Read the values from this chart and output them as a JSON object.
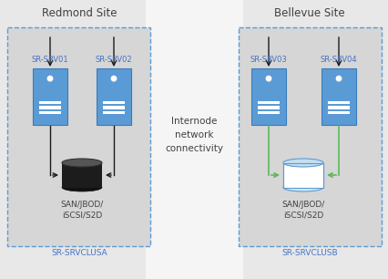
{
  "bg_color": "#e8e8e8",
  "white_band_color": "#f5f5f5",
  "cluster_box_color": "#d6d6d6",
  "cluster_box_edge": "#5b9bd5",
  "server_color": "#5b9bd5",
  "server_edge": "#3a7abf",
  "disk_black_top": "#555555",
  "disk_black_body": "#1a1a1a",
  "disk_black_bot": "#111111",
  "disk_white_top": "#c5dff0",
  "disk_white_body": "#ffffff",
  "disk_white_edge": "#5b9bd5",
  "arrow_black": "#1a1a1a",
  "arrow_green": "#5cb85c",
  "text_color_dark": "#404040",
  "text_color_blue": "#4472c4",
  "site_label_left": "Redmond Site",
  "site_label_right": "Bellevue Site",
  "internode_text": "Internode\nnetwork\nconnectivity",
  "cluster_label_left": "SR-SRVCLUSА",
  "cluster_label_right": "SR-SRVCLUSB",
  "srv_labels": [
    "SR-SRV01",
    "SR-SRV02",
    "SR-SRV03",
    "SR-SRV04"
  ],
  "storage_label": "SAN/JBOD/\niSCSI/S2D",
  "figw": 4.27,
  "figh": 3.06,
  "dpi": 100
}
